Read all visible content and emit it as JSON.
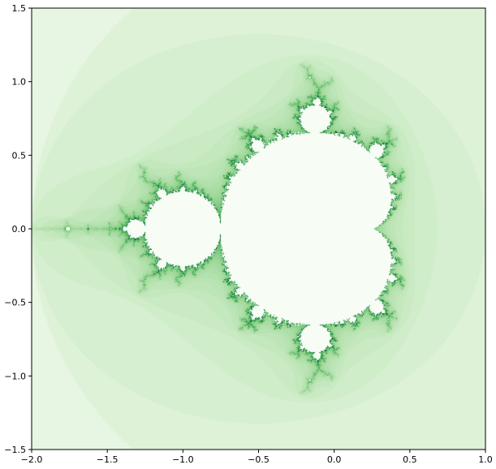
{
  "chart_data": {
    "type": "heatmap",
    "title": "",
    "xlabel": "",
    "ylabel": "",
    "xlim": [
      -2.0,
      1.0
    ],
    "ylim": [
      -1.5,
      1.5
    ],
    "xticks": [
      -2.0,
      -1.5,
      -1.0,
      -0.5,
      0.0,
      0.5,
      1.0
    ],
    "yticks": [
      -1.5,
      -1.0,
      -0.5,
      0.0,
      0.5,
      1.0,
      1.5
    ],
    "xtick_labels": [
      "−2.0",
      "−1.5",
      "−1.0",
      "−0.5",
      "0.0",
      "0.5",
      "1.0"
    ],
    "ytick_labels": [
      "−1.5",
      "−1.0",
      "−0.5",
      "0.0",
      "0.5",
      "1.0",
      "1.5"
    ],
    "grid": false,
    "colormap": "Greens",
    "content": "Mandelbrot set escape-time image",
    "max_iterations": 80,
    "colors": {
      "set_interior": "#f7fcf5",
      "background_far": "#f1f9ee",
      "boundary_dark": "#00441b"
    }
  }
}
